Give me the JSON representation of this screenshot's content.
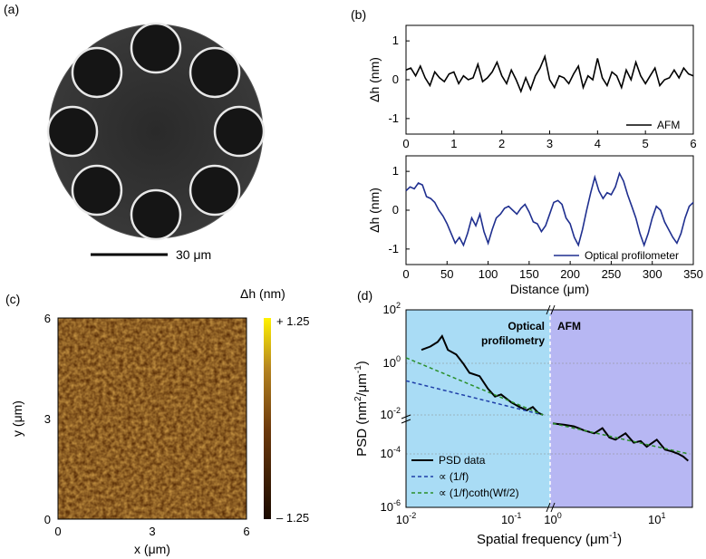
{
  "panels": {
    "a": {
      "label": "(a)",
      "scale_bar_text": "30 μm"
    },
    "b": {
      "label": "(b)"
    },
    "c": {
      "label": "(c)",
      "colorbar_title": "Δh (nm)",
      "colorbar_max": "+ 1.25",
      "colorbar_min": "– 1.25",
      "colors": {
        "low": "#1a0a00",
        "mid": "#8a4d12",
        "high": "#fff200"
      }
    },
    "d": {
      "label": "(d)",
      "region_left_label": "Optical\nprofilometry",
      "region_right_label": "AFM",
      "colors": {
        "left_bg": "#a9dcf5",
        "right_bg": "#b7b7f3"
      }
    }
  },
  "chart_data": [
    {
      "id": "b-top",
      "type": "line",
      "xlabel": "",
      "ylabel": "Δh (nm)",
      "xlim": [
        0,
        6
      ],
      "ylim": [
        -1.4,
        1.4
      ],
      "xticks": [
        "0",
        "1",
        "2",
        "3",
        "4",
        "5",
        "6"
      ],
      "yticks": [
        "1",
        "0",
        "-1"
      ],
      "series": [
        {
          "name": "AFM",
          "color": "#000000",
          "x": [
            0,
            0.1,
            0.2,
            0.3,
            0.4,
            0.5,
            0.6,
            0.7,
            0.8,
            0.9,
            1.0,
            1.1,
            1.2,
            1.3,
            1.4,
            1.5,
            1.6,
            1.7,
            1.8,
            1.9,
            2.0,
            2.1,
            2.2,
            2.3,
            2.4,
            2.5,
            2.6,
            2.7,
            2.8,
            2.9,
            3.0,
            3.1,
            3.2,
            3.3,
            3.4,
            3.5,
            3.6,
            3.7,
            3.8,
            3.9,
            4.0,
            4.1,
            4.2,
            4.3,
            4.4,
            4.5,
            4.6,
            4.7,
            4.8,
            4.9,
            5.0,
            5.1,
            5.2,
            5.3,
            5.4,
            5.5,
            5.6,
            5.7,
            5.8,
            5.9,
            6.0
          ],
          "values": [
            0.25,
            0.3,
            0.1,
            0.35,
            0.05,
            -0.15,
            0.2,
            0.05,
            -0.05,
            0.15,
            0.2,
            -0.1,
            0.1,
            0.0,
            0.05,
            0.4,
            -0.05,
            0.05,
            0.2,
            0.45,
            0.1,
            -0.1,
            0.25,
            0.0,
            -0.3,
            0.05,
            -0.25,
            0.1,
            0.3,
            0.6,
            0.0,
            -0.2,
            0.1,
            0.05,
            -0.1,
            0.15,
            0.35,
            -0.2,
            0.1,
            0.0,
            0.55,
            0.05,
            -0.15,
            0.2,
            0.1,
            -0.2,
            0.25,
            0.0,
            0.45,
            0.1,
            -0.1,
            0.1,
            0.3,
            -0.15,
            0.0,
            0.05,
            0.25,
            0.05,
            0.3,
            0.15,
            0.1
          ]
        }
      ]
    },
    {
      "id": "b-bottom",
      "type": "line",
      "xlabel": "Distance (μm)",
      "ylabel": "Δh (nm)",
      "xlim": [
        0,
        350
      ],
      "ylim": [
        -1.4,
        1.4
      ],
      "xticks": [
        "0",
        "50",
        "100",
        "150",
        "200",
        "250",
        "300",
        "350"
      ],
      "yticks": [
        "1",
        "0",
        "-1"
      ],
      "series": [
        {
          "name": "Optical profilometer",
          "color": "#1f2f8f",
          "x": [
            0,
            5,
            10,
            15,
            20,
            25,
            30,
            35,
            40,
            45,
            50,
            55,
            60,
            65,
            70,
            75,
            80,
            85,
            90,
            95,
            100,
            105,
            110,
            115,
            120,
            125,
            130,
            135,
            140,
            145,
            150,
            155,
            160,
            165,
            170,
            175,
            180,
            185,
            190,
            195,
            200,
            205,
            210,
            215,
            220,
            225,
            230,
            235,
            240,
            245,
            250,
            255,
            260,
            265,
            270,
            275,
            280,
            285,
            290,
            295,
            300,
            305,
            310,
            315,
            320,
            325,
            330,
            335,
            340,
            345,
            350
          ],
          "values": [
            0.5,
            0.6,
            0.55,
            0.7,
            0.65,
            0.35,
            0.3,
            0.2,
            0.0,
            -0.15,
            -0.35,
            -0.6,
            -0.85,
            -0.7,
            -0.9,
            -0.6,
            -0.2,
            -0.4,
            -0.1,
            -0.55,
            -0.85,
            -0.5,
            -0.2,
            -0.1,
            0.05,
            0.1,
            0.0,
            -0.1,
            0.05,
            0.15,
            -0.05,
            -0.3,
            -0.35,
            -0.55,
            -0.4,
            -0.1,
            0.2,
            0.25,
            0.15,
            -0.2,
            -0.35,
            -0.7,
            -0.9,
            -0.5,
            0.0,
            0.45,
            0.85,
            0.5,
            0.3,
            0.45,
            0.4,
            0.6,
            0.95,
            0.75,
            0.4,
            0.1,
            -0.2,
            -0.6,
            -0.9,
            -0.6,
            -0.2,
            0.1,
            0.0,
            -0.3,
            -0.5,
            -0.7,
            -0.85,
            -0.6,
            -0.2,
            0.1,
            0.2
          ]
        }
      ]
    },
    {
      "id": "c-map",
      "type": "heatmap",
      "xlabel": "x (μm)",
      "ylabel": "y (μm)",
      "xlim": [
        0,
        6
      ],
      "ylim": [
        0,
        6
      ],
      "xticks": [
        "0",
        "3",
        "6"
      ],
      "yticks": [
        "6",
        "3",
        "0"
      ],
      "zlim": [
        -1.25,
        1.25
      ]
    },
    {
      "id": "d-psd",
      "type": "line",
      "xlabel": "Spatial frequency (μm-1)",
      "ylabel": "PSD (nm2/μm-1)",
      "x_scale": "log",
      "y_scale": "log",
      "yticks": [
        "10^2",
        "10^0",
        "10^-2",
        "10^-4",
        "10^-6"
      ],
      "xticks_left": [
        "10^-2",
        "10^-1"
      ],
      "xticks_right": [
        "10^0",
        "10^1"
      ],
      "legend": [
        "PSD data",
        "∝ (1/f)",
        "∝ (1/f)coth(Wf/2)"
      ],
      "series": [
        {
          "name": "PSD data",
          "color": "#000000",
          "segment": "optical",
          "x": [
            0.014,
            0.017,
            0.02,
            0.022,
            0.025,
            0.03,
            0.035,
            0.04,
            0.05,
            0.06,
            0.07,
            0.08,
            0.1,
            0.12,
            0.14,
            0.16,
            0.18,
            0.2
          ],
          "values": [
            3,
            4,
            6,
            10,
            3,
            2,
            0.9,
            0.4,
            0.3,
            0.1,
            0.05,
            0.06,
            0.03,
            0.02,
            0.015,
            0.02,
            0.012,
            0.01
          ]
        },
        {
          "name": "PSD data",
          "color": "#000000",
          "segment": "afm",
          "x": [
            1.0,
            1.3,
            1.6,
            2.0,
            2.5,
            3.0,
            3.5,
            4.0,
            5.0,
            6.0,
            7.0,
            8.0,
            10,
            12,
            14,
            16,
            18,
            20
          ],
          "values": [
            0.004,
            0.0035,
            0.003,
            0.002,
            0.0015,
            0.0025,
            0.001,
            0.0008,
            0.0015,
            0.0006,
            0.0007,
            0.0004,
            0.0008,
            0.0003,
            0.00025,
            0.0002,
            0.00015,
            0.0001
          ]
        },
        {
          "name": "∝ (1/f)",
          "color": "#1f3fa8",
          "style": "dashed",
          "x": [
            0.01,
            0.2
          ],
          "values": [
            0.2,
            0.01
          ]
        },
        {
          "name": "∝ (1/f)coth(Wf/2)",
          "color": "#2a8f2a",
          "style": "dashed",
          "x": [
            0.01,
            0.2
          ],
          "values": [
            1.5,
            0.01
          ]
        },
        {
          "name": "fit-afm",
          "color": "#2a8f2a",
          "style": "dashed",
          "x": [
            1,
            20
          ],
          "values": [
            0.004,
            0.0002
          ]
        }
      ]
    }
  ]
}
